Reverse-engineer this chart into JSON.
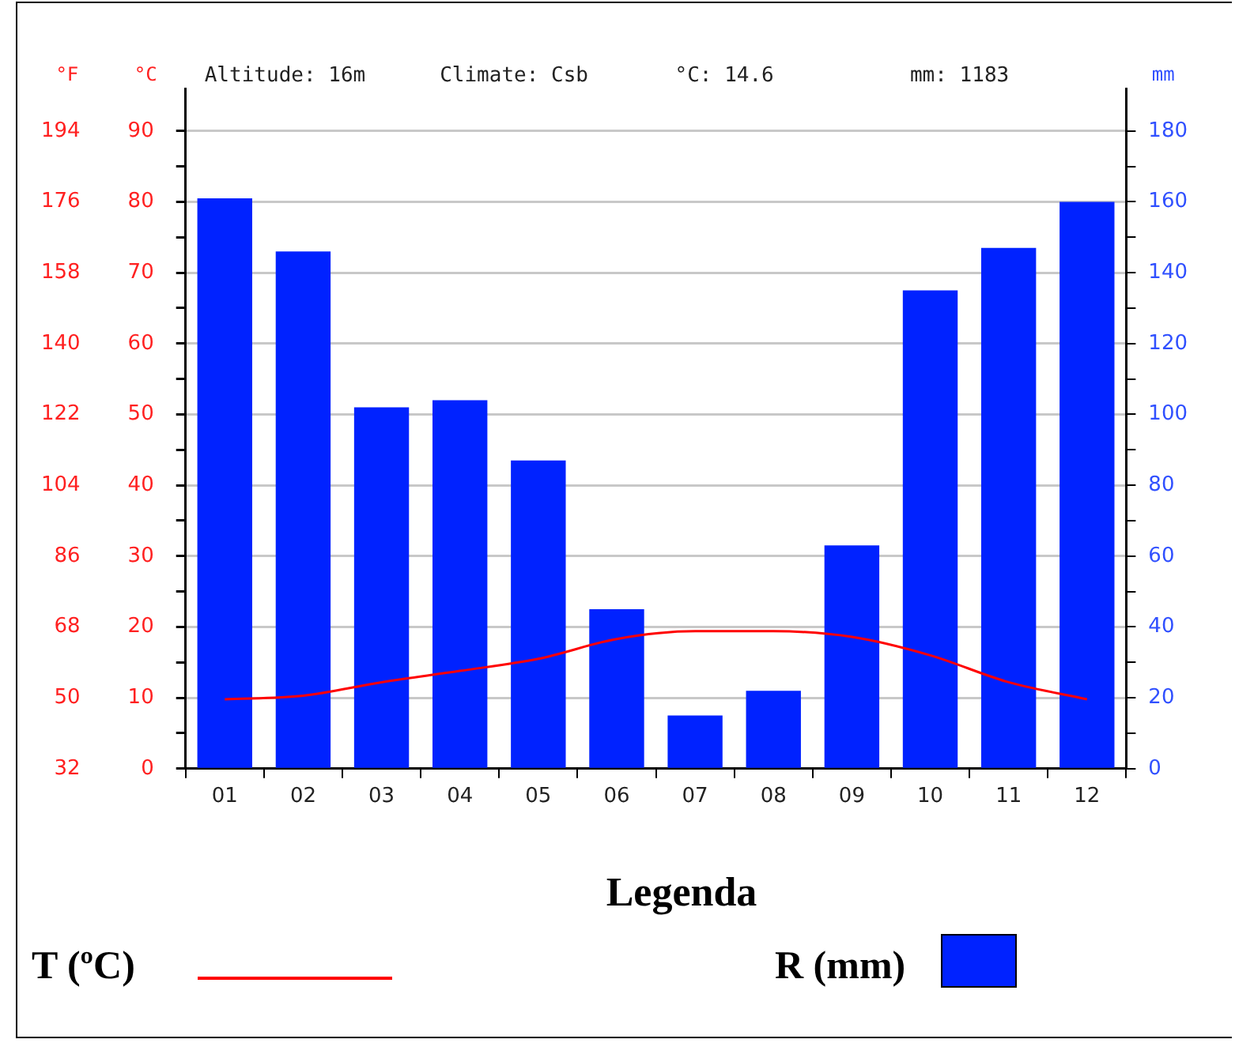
{
  "chart_data": {
    "type": "bar",
    "categories": [
      "01",
      "02",
      "03",
      "04",
      "05",
      "06",
      "07",
      "08",
      "09",
      "10",
      "11",
      "12"
    ],
    "series": [
      {
        "name": "R (mm)",
        "axis": "y2",
        "color": "#0022ff",
        "values": [
          161,
          146,
          102,
          104,
          87,
          45,
          15,
          22,
          63,
          135,
          147,
          160
        ]
      },
      {
        "name": "T (ºC)",
        "type": "line",
        "axis": "y",
        "color": "#ff0000",
        "values": [
          9.8,
          10.3,
          12.2,
          13.8,
          15.5,
          18.3,
          19.4,
          19.4,
          18.6,
          16,
          12.2,
          9.8
        ]
      }
    ],
    "ylabel": "°C",
    "y2label": "mm",
    "y3label": "°F",
    "ylim": [
      0,
      96
    ],
    "yticks": [
      0,
      {
        "value": 5,
        "label": null
      },
      10,
      {
        "value": 15,
        "label": null
      },
      20,
      {
        "value": 25,
        "label": null
      },
      30,
      {
        "value": 35,
        "label": null
      },
      40,
      {
        "value": 45,
        "label": null
      },
      50,
      {
        "value": 55,
        "label": null
      },
      60,
      {
        "value": 65,
        "label": null
      },
      70,
      {
        "value": 75,
        "label": null
      },
      80,
      {
        "value": 85,
        "label": null
      },
      90
    ],
    "y2lim": [
      0,
      192
    ],
    "y2ticks": [
      0,
      {
        "value": 10,
        "label": null
      },
      20,
      {
        "value": 30,
        "label": null
      },
      40,
      {
        "value": 50,
        "label": null
      },
      60,
      {
        "value": 70,
        "label": null
      },
      80,
      {
        "value": 90,
        "label": null
      },
      100,
      {
        "value": 110,
        "label": null
      },
      120,
      {
        "value": 130,
        "label": null
      },
      140,
      {
        "value": 150,
        "label": null
      },
      160,
      {
        "value": 170,
        "label": null
      },
      180
    ],
    "y3lim": [
      32,
      204.8
    ],
    "y3ticks": [
      32,
      50,
      68,
      86,
      104,
      122,
      140,
      158,
      176,
      194
    ],
    "annotations": [
      "Altitude: 16m",
      "Climate: Csb",
      "°C: 14.6",
      "mm: 1183"
    ],
    "grid": "y",
    "marker": "none",
    "legend": "bottom",
    "legend_title": "Legenda"
  }
}
